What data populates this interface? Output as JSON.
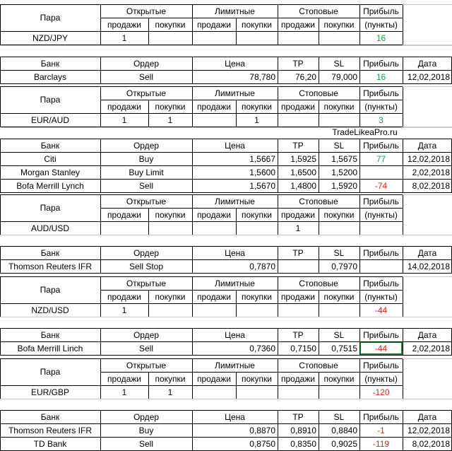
{
  "blocks": [
    {
      "pair": {
        "h_pair": "Пара",
        "h_open": "Открытые",
        "h_limit": "Лимитные",
        "h_stop": "Стоповые",
        "h_profit": "Прибыль",
        "h_sell": "продажи",
        "h_buy": "покупки",
        "h_points": "(пункты)",
        "name": "NZD/JPY",
        "open_sell": "1",
        "open_buy": "",
        "limit_sell": "",
        "limit_buy": "",
        "stop_sell": "",
        "stop_buy": "",
        "profit": "16",
        "profit_color": "#1aa04a"
      },
      "orders": {
        "h_bank": "Банк",
        "h_order": "Ордер",
        "h_price": "Цена",
        "h_tp": "TP",
        "h_sl": "SL",
        "h_profit": "Прибыль",
        "h_date": "Дата",
        "rows": [
          {
            "bank": "Barclays",
            "order": "Sell",
            "price": "78,780",
            "tp": "76,20",
            "sl": "79,000",
            "profit": "16",
            "date": "12,02,2018"
          }
        ]
      }
    },
    {
      "pair": {
        "h_pair": "Пара",
        "h_open": "Открытые",
        "h_limit": "Лимитные",
        "h_stop": "Стоповые",
        "h_profit": "Прибыль",
        "h_sell": "продажи",
        "h_buy": "покупки",
        "h_points": "(пункты)",
        "name": "EUR/AUD",
        "open_sell": "1",
        "open_buy": "1",
        "limit_sell": "",
        "limit_buy": "1",
        "stop_sell": "",
        "stop_buy": "",
        "profit": "3",
        "profit_color": "#1aa04a"
      },
      "watermark": "TradeLikeaPro.ru",
      "orders": {
        "h_bank": "Банк",
        "h_order": "Ордер",
        "h_price": "Цена",
        "h_tp": "TP",
        "h_sl": "SL",
        "h_profit": "Прибыль",
        "h_date": "Дата",
        "rows": [
          {
            "bank": "Citi",
            "order": "Buy",
            "price": "1,5667",
            "tp": "1,5925",
            "sl": "1,5675",
            "profit": "77",
            "date": "12,02,2018"
          },
          {
            "bank": "Morgan Stanley",
            "order": "Buy Limit",
            "price": "1,5600",
            "tp": "1,6500",
            "sl": "1,5200",
            "profit": "",
            "date": "2,02,2018"
          },
          {
            "bank": "Bofa Merrill Lynch",
            "order": "Sell",
            "price": "1,5670",
            "tp": "1,4800",
            "sl": "1,5920",
            "profit": "-74",
            "date": "8,02,2018"
          }
        ]
      }
    },
    {
      "pair": {
        "h_pair": "Пара",
        "h_open": "Открытые",
        "h_limit": "Лимитные",
        "h_stop": "Стоповые",
        "h_profit": "Прибыль",
        "h_sell": "продажи",
        "h_buy": "покупки",
        "h_points": "(пункты)",
        "name": "AUD/USD",
        "open_sell": "",
        "open_buy": "",
        "limit_sell": "",
        "limit_buy": "",
        "stop_sell": "1",
        "stop_buy": "",
        "profit": "",
        "profit_color": "#000000"
      },
      "orders": {
        "h_bank": "Банк",
        "h_order": "Ордер",
        "h_price": "Цена",
        "h_tp": "TP",
        "h_sl": "SL",
        "h_profit": "Прибыль",
        "h_date": "Дата",
        "rows": [
          {
            "bank": "Thomson Reuters IFR",
            "order": "Sell Stop",
            "price": "0,7870",
            "tp": "",
            "sl": "0,7970",
            "profit": "",
            "date": "14,02,2018"
          }
        ]
      }
    },
    {
      "pair": {
        "h_pair": "Пара",
        "h_open": "Открытые",
        "h_limit": "Лимитные",
        "h_stop": "Стоповые",
        "h_profit": "Прибыль",
        "h_sell": "продажи",
        "h_buy": "покупки",
        "h_points": "(пункты)",
        "name": "NZD/USD",
        "open_sell": "1",
        "open_buy": "",
        "limit_sell": "",
        "limit_buy": "",
        "stop_sell": "",
        "stop_buy": "",
        "profit": "-44",
        "profit_color": "#e02020"
      },
      "orders": {
        "h_bank": "Банк",
        "h_order": "Ордер",
        "h_price": "Цена",
        "h_tp": "TP",
        "h_sl": "SL",
        "h_profit": "Прибыль",
        "h_date": "Дата",
        "rows": [
          {
            "bank": "Bofa Merrill Linch",
            "order": "Sell",
            "price": "0,7360",
            "tp": "0,7150",
            "sl": "0,7515",
            "profit": "-44",
            "date": "2,02,2018"
          }
        ]
      }
    },
    {
      "pair": {
        "h_pair": "Пара",
        "h_open": "Открытые",
        "h_limit": "Лимитные",
        "h_stop": "Стоповые",
        "h_profit": "Прибыль",
        "h_sell": "продажи",
        "h_buy": "покупки",
        "h_points": "(пункты)",
        "name": "EUR/GBP",
        "open_sell": "1",
        "open_buy": "1",
        "limit_sell": "",
        "limit_buy": "",
        "stop_sell": "",
        "stop_buy": "",
        "profit": "-120",
        "profit_color": "#e02020"
      },
      "orders": {
        "h_bank": "Банк",
        "h_order": "Ордер",
        "h_price": "Цена",
        "h_tp": "TP",
        "h_sl": "SL",
        "h_profit": "Прибыль",
        "h_date": "Дата",
        "rows": [
          {
            "bank": "Thomson Reuters IFR",
            "order": "Buy",
            "price": "0,8870",
            "tp": "0,8910",
            "sl": "0,8840",
            "profit": "-1",
            "date": "12,02,2018"
          },
          {
            "bank": "TD Bank",
            "order": "Sell",
            "price": "0,8750",
            "tp": "0,8350",
            "sl": "0,9025",
            "profit": "-119",
            "date": "8,02,2018"
          }
        ]
      }
    }
  ]
}
